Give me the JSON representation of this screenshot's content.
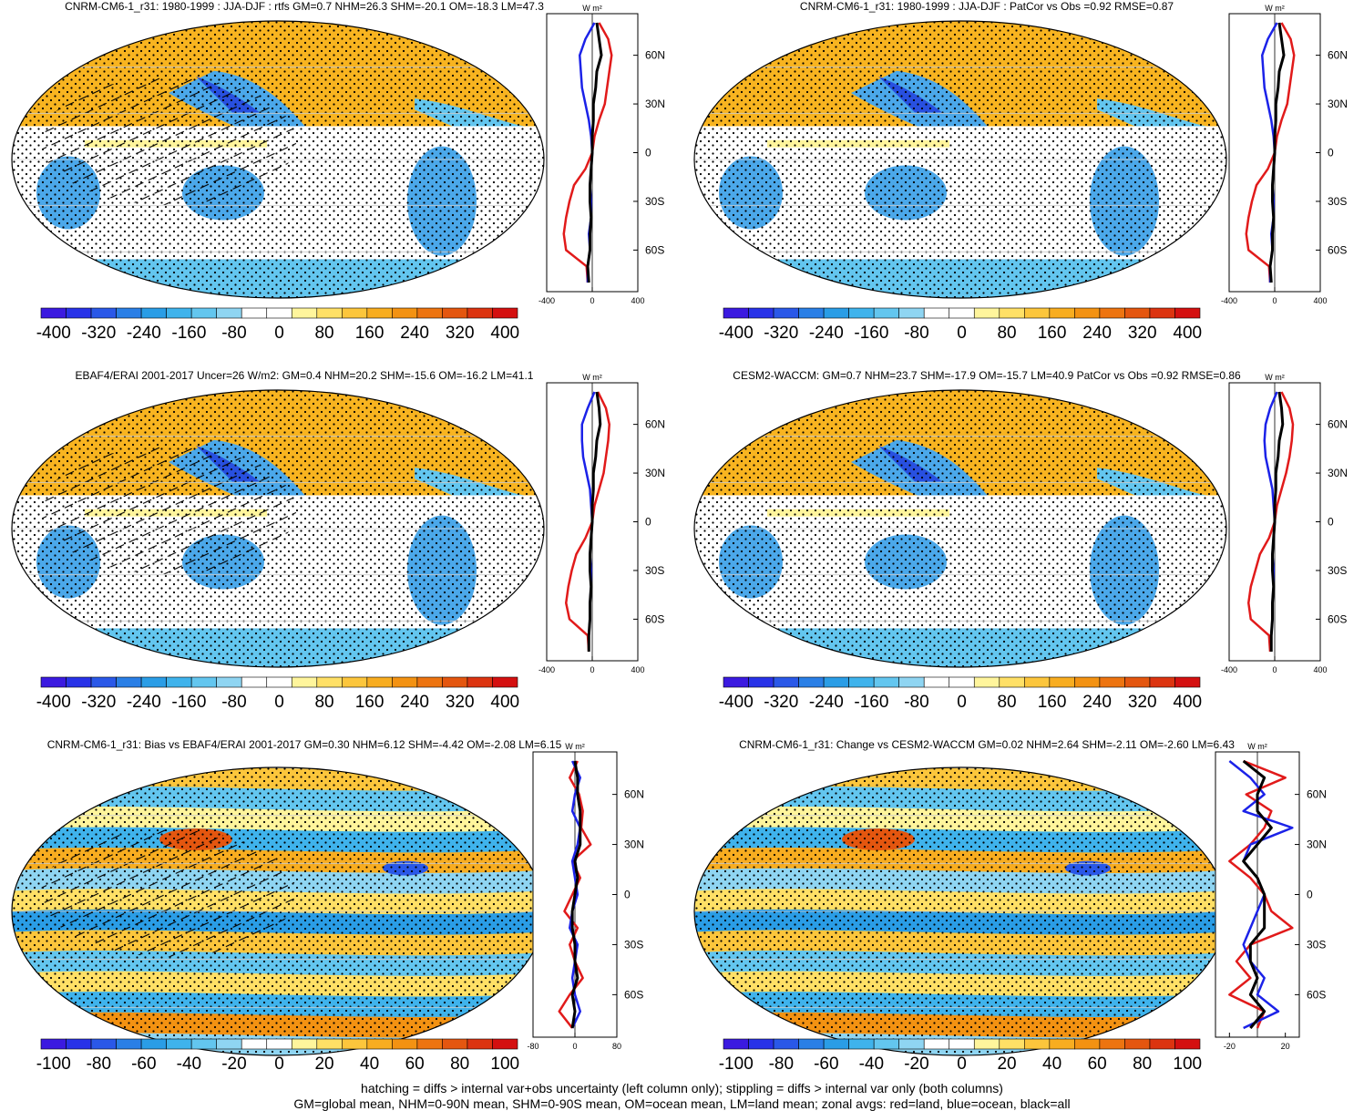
{
  "colors": {
    "land": "#e11a1a",
    "ocean": "#1b22e8",
    "all": "#000000",
    "colormap": [
      "#3b1ae0",
      "#2832e8",
      "#2a58e8",
      "#2a7fe6",
      "#2a9de6",
      "#3fb3ec",
      "#63c6ef",
      "#8fd5f2",
      "#ffffff",
      "#ffffff",
      "#fff59c",
      "#ffe066",
      "#fcc63c",
      "#f8ad20",
      "#f39212",
      "#ed7410",
      "#e4560f",
      "#dc3410",
      "#d41010"
    ]
  },
  "chart_data": [
    {
      "type": "map",
      "panel": "top-left",
      "title": "CNRM-CM6-1_r31: 1980-1999 : JJA-DJF : rtfs GM=0.7 NHM=26.3 SHM=-20.1 OM=-18.3 LM=47.3",
      "units": "W m²",
      "hatching": true,
      "stippling": true,
      "colorbar": {
        "range": [
          -400,
          400
        ],
        "ticks": [
          "-400",
          "-320",
          "-240",
          "-160",
          "-80",
          "0",
          "80",
          "160",
          "240",
          "320",
          "400"
        ]
      },
      "zonal": {
        "xlim": [
          -400,
          400
        ],
        "xticks": [
          "-400",
          "0",
          "400"
        ],
        "yticks": [
          "60N",
          "30N",
          "0",
          "30S",
          "60S"
        ],
        "lat": [
          80,
          70,
          60,
          50,
          40,
          30,
          20,
          10,
          0,
          -10,
          -20,
          -30,
          -40,
          -50,
          -60,
          -70,
          -80
        ],
        "land": [
          60,
          140,
          170,
          150,
          130,
          110,
          60,
          20,
          0,
          -60,
          -160,
          -200,
          -230,
          -250,
          -230,
          -50,
          -40
        ],
        "ocean": [
          20,
          -60,
          -110,
          -100,
          -90,
          -60,
          -30,
          -10,
          0,
          -10,
          -20,
          -10,
          -10,
          -30,
          -20,
          -40,
          -40
        ],
        "all": [
          40,
          60,
          80,
          40,
          30,
          10,
          10,
          0,
          0,
          -10,
          -20,
          -20,
          -10,
          -20,
          -20,
          -40,
          -30
        ]
      }
    },
    {
      "type": "map",
      "panel": "top-right",
      "title": "CNRM-CM6-1_r31: 1980-1999 : JJA-DJF : PatCor vs Obs =0.92 RMSE=0.87",
      "units": "W m²",
      "hatching": false,
      "stippling": true,
      "colorbar": {
        "range": [
          -400,
          400
        ],
        "ticks": [
          "-400",
          "-320",
          "-240",
          "-160",
          "-80",
          "0",
          "80",
          "160",
          "240",
          "320",
          "400"
        ]
      },
      "zonal": {
        "xlim": [
          -400,
          400
        ],
        "xticks": [
          "-400",
          "0",
          "400"
        ],
        "yticks": [
          "60N",
          "30N",
          "0",
          "30S",
          "60S"
        ],
        "lat": [
          80,
          70,
          60,
          50,
          40,
          30,
          20,
          10,
          0,
          -10,
          -20,
          -30,
          -40,
          -50,
          -60,
          -70,
          -80
        ],
        "land": [
          60,
          140,
          170,
          150,
          130,
          110,
          60,
          20,
          0,
          -60,
          -160,
          -200,
          -230,
          -250,
          -230,
          -50,
          -40
        ],
        "ocean": [
          20,
          -60,
          -110,
          -100,
          -90,
          -60,
          -30,
          -10,
          0,
          -10,
          -20,
          -10,
          -10,
          -30,
          -20,
          -40,
          -40
        ],
        "all": [
          40,
          60,
          80,
          40,
          30,
          10,
          10,
          0,
          0,
          -10,
          -20,
          -20,
          -10,
          -20,
          -20,
          -40,
          -30
        ]
      }
    },
    {
      "type": "map",
      "panel": "middle-left",
      "title": "EBAF4/ERAI 2001-2017 Uncer=26 W/m2: GM=0.4 NHM=20.2 SHM=-15.6 OM=-16.2 LM=41.1",
      "units": "W m²",
      "hatching": true,
      "stippling": true,
      "colorbar": {
        "range": [
          -400,
          400
        ],
        "ticks": [
          "-400",
          "-320",
          "-240",
          "-160",
          "-80",
          "0",
          "80",
          "160",
          "240",
          "320",
          "400"
        ]
      },
      "zonal": {
        "xlim": [
          -400,
          400
        ],
        "xticks": [
          "-400",
          "0",
          "400"
        ],
        "yticks": [
          "60N",
          "30N",
          "0",
          "30S",
          "60S"
        ],
        "lat": [
          80,
          70,
          60,
          50,
          40,
          30,
          20,
          10,
          0,
          -10,
          -20,
          -30,
          -40,
          -50,
          -60,
          -70,
          -80
        ],
        "land": [
          50,
          120,
          150,
          140,
          120,
          100,
          60,
          20,
          0,
          -60,
          -140,
          -180,
          -210,
          -230,
          -200,
          -40,
          -30
        ],
        "ocean": [
          20,
          -40,
          -90,
          -90,
          -80,
          -50,
          -20,
          -10,
          0,
          -10,
          -20,
          -10,
          -10,
          -20,
          -20,
          -30,
          -30
        ],
        "all": [
          40,
          60,
          70,
          40,
          30,
          10,
          10,
          0,
          0,
          -10,
          -20,
          -20,
          -10,
          -20,
          -20,
          -30,
          -30
        ]
      }
    },
    {
      "type": "map",
      "panel": "middle-right",
      "title": "CESM2-WACCM: GM=0.7 NHM=23.7 SHM=-17.9 OM=-15.7 LM=40.9 PatCor vs Obs =0.92 RMSE=0.86",
      "units": "W m²",
      "hatching": false,
      "stippling": true,
      "colorbar": {
        "range": [
          -400,
          400
        ],
        "ticks": [
          "-400",
          "-320",
          "-240",
          "-160",
          "-80",
          "0",
          "80",
          "160",
          "240",
          "320",
          "400"
        ]
      },
      "zonal": {
        "xlim": [
          -400,
          400
        ],
        "xticks": [
          "-400",
          "0",
          "400"
        ],
        "yticks": [
          "60N",
          "30N",
          "0",
          "30S",
          "60S"
        ],
        "lat": [
          80,
          70,
          60,
          50,
          40,
          30,
          20,
          10,
          0,
          -10,
          -20,
          -30,
          -40,
          -50,
          -60,
          -70,
          -80
        ],
        "land": [
          60,
          130,
          160,
          150,
          130,
          100,
          60,
          20,
          0,
          -50,
          -130,
          -170,
          -210,
          -230,
          -210,
          -50,
          -40
        ],
        "ocean": [
          20,
          -40,
          -80,
          -90,
          -80,
          -50,
          -20,
          -10,
          0,
          -10,
          -20,
          -10,
          -10,
          -20,
          -20,
          -30,
          -30
        ],
        "all": [
          40,
          60,
          70,
          40,
          30,
          10,
          10,
          0,
          0,
          -10,
          -20,
          -20,
          -10,
          -20,
          -20,
          -30,
          -30
        ]
      }
    },
    {
      "type": "map",
      "panel": "bottom-left",
      "title": "CNRM-CM6-1_r31: Bias vs EBAF4/ERAI 2001-2017 GM=0.30 NHM=6.12 SHM=-4.42 OM=-2.08 LM=6.15",
      "units": "W m²",
      "hatching": true,
      "stippling": true,
      "colorbar": {
        "range": [
          -100,
          100
        ],
        "ticks": [
          "-100",
          "-80",
          "-60",
          "-40",
          "-20",
          "0",
          "20",
          "40",
          "60",
          "80",
          "100"
        ]
      },
      "zonal": {
        "xlim": [
          -80,
          80
        ],
        "xticks": [
          "-80",
          "0",
          "80"
        ],
        "yticks": [
          "60N",
          "30N",
          "0",
          "30S",
          "60S"
        ],
        "lat": [
          80,
          70,
          60,
          50,
          40,
          30,
          20,
          10,
          0,
          -10,
          -20,
          -30,
          -40,
          -50,
          -60,
          -70,
          -80
        ],
        "land": [
          5,
          -10,
          8,
          15,
          12,
          30,
          -5,
          10,
          -5,
          -20,
          5,
          -10,
          0,
          15,
          -10,
          -30,
          -5
        ],
        "ocean": [
          -5,
          10,
          0,
          -5,
          10,
          5,
          -5,
          0,
          5,
          -5,
          -10,
          5,
          0,
          -5,
          0,
          10,
          -5
        ],
        "all": [
          0,
          5,
          5,
          10,
          10,
          10,
          0,
          5,
          0,
          -5,
          -5,
          0,
          0,
          5,
          -5,
          0,
          -5
        ]
      }
    },
    {
      "type": "map",
      "panel": "bottom-right",
      "title": "CNRM-CM6-1_r31: Change vs CESM2-WACCM GM=0.02 NHM=2.64 SHM=-2.11 OM=-2.60 LM=6.43",
      "units": "W m²",
      "hatching": false,
      "stippling": true,
      "colorbar": {
        "range": [
          -100,
          100
        ],
        "ticks": [
          "-100",
          "-80",
          "-60",
          "-40",
          "-20",
          "0",
          "20",
          "40",
          "60",
          "80",
          "100"
        ]
      },
      "zonal": {
        "xlim": [
          -30,
          30
        ],
        "xticks": [
          "-20",
          "20"
        ],
        "yticks": [
          "60N",
          "30N",
          "0",
          "30S",
          "60S"
        ],
        "lat": [
          80,
          70,
          60,
          50,
          40,
          30,
          20,
          10,
          0,
          -10,
          -20,
          -30,
          -40,
          -50,
          -60,
          -70,
          -80
        ],
        "land": [
          -10,
          20,
          -8,
          10,
          5,
          -5,
          -20,
          -5,
          5,
          10,
          25,
          -5,
          -15,
          -5,
          -20,
          5,
          0
        ],
        "ocean": [
          -20,
          -5,
          5,
          -10,
          25,
          -5,
          -10,
          0,
          5,
          0,
          -5,
          -10,
          -5,
          5,
          0,
          15,
          -10
        ],
        "all": [
          -10,
          5,
          0,
          0,
          10,
          0,
          -10,
          0,
          5,
          5,
          5,
          -5,
          -5,
          0,
          -5,
          5,
          -5
        ]
      }
    }
  ],
  "footer": {
    "line1": "hatching = diffs > internal var+obs uncertainty (left column only); stippling = diffs > internal var only (both columns)",
    "line2": "GM=global mean, NHM=0-90N mean, SHM=0-90S mean, OM=ocean mean, LM=land mean; zonal avgs: red=land, blue=ocean, black=all"
  }
}
